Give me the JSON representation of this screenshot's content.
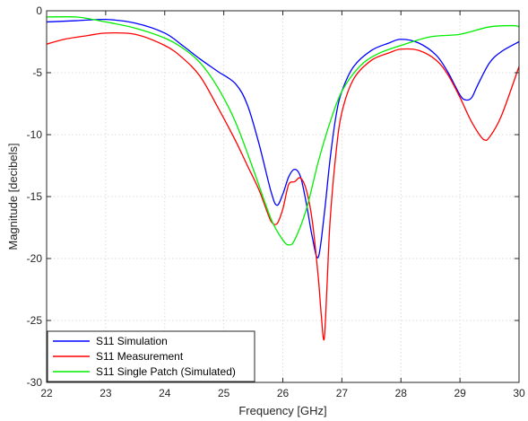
{
  "chart_data": {
    "type": "line",
    "title": "",
    "xlabel": "Frequency [GHz]",
    "ylabel": "Magnitude [decibels]",
    "xlim": [
      22,
      30
    ],
    "ylim": [
      -30,
      0
    ],
    "xticks": [
      22,
      23,
      24,
      25,
      26,
      27,
      28,
      29,
      30
    ],
    "yticks": [
      0,
      -5,
      -10,
      -15,
      -20,
      -25,
      -30
    ],
    "grid": true,
    "legend_position": "bottom-left",
    "series": [
      {
        "name": "S11 Simulation",
        "color": "#0000ff",
        "x": [
          22,
          22.5,
          23,
          23.5,
          24,
          24.3,
          24.6,
          24.9,
          25.2,
          25.4,
          25.6,
          25.8,
          25.9,
          26.0,
          26.1,
          26.2,
          26.3,
          26.4,
          26.5,
          26.6,
          26.7,
          26.8,
          26.9,
          27.0,
          27.2,
          27.5,
          27.8,
          28.0,
          28.3,
          28.6,
          28.8,
          29.0,
          29.1,
          29.2,
          29.3,
          29.5,
          29.7,
          30.0
        ],
        "y": [
          -0.9,
          -0.8,
          -0.7,
          -1.0,
          -1.8,
          -2.8,
          -3.9,
          -4.9,
          -5.9,
          -7.6,
          -10.8,
          -14.6,
          -15.7,
          -14.8,
          -13.4,
          -12.8,
          -13.4,
          -15.6,
          -18.3,
          -19.9,
          -16.5,
          -12.0,
          -8.5,
          -6.5,
          -4.5,
          -3.2,
          -2.6,
          -2.3,
          -2.6,
          -3.6,
          -5.0,
          -6.8,
          -7.2,
          -7.0,
          -6.0,
          -4.2,
          -3.3,
          -2.5
        ]
      },
      {
        "name": "S11 Measurement",
        "color": "#ff0000",
        "x": [
          22,
          22.3,
          22.7,
          23,
          23.5,
          24,
          24.3,
          24.6,
          24.9,
          25.2,
          25.4,
          25.6,
          25.8,
          25.9,
          26.0,
          26.1,
          26.2,
          26.3,
          26.4,
          26.5,
          26.6,
          26.65,
          26.7,
          26.75,
          26.8,
          26.9,
          27.0,
          27.2,
          27.5,
          27.8,
          28.0,
          28.3,
          28.6,
          28.8,
          29.0,
          29.2,
          29.4,
          29.5,
          29.7,
          30.0
        ],
        "y": [
          -2.7,
          -2.3,
          -2.0,
          -1.8,
          -1.9,
          -2.8,
          -3.8,
          -5.3,
          -7.8,
          -10.5,
          -12.5,
          -14.5,
          -17.0,
          -17.2,
          -16.0,
          -14.0,
          -13.8,
          -13.5,
          -14.5,
          -17.0,
          -21.5,
          -24.5,
          -26.5,
          -22.0,
          -17.0,
          -11.5,
          -8.2,
          -5.5,
          -4.0,
          -3.4,
          -3.1,
          -3.2,
          -4.0,
          -5.2,
          -7.0,
          -9.0,
          -10.4,
          -10.2,
          -8.5,
          -4.5
        ]
      },
      {
        "name": "S11 Single Patch (Simulated)",
        "color": "#00ee00",
        "x": [
          22,
          22.5,
          23,
          23.5,
          24,
          24.3,
          24.6,
          24.9,
          25.2,
          25.5,
          25.8,
          26.0,
          26.1,
          26.2,
          26.4,
          26.6,
          26.8,
          27.0,
          27.3,
          27.6,
          28.0,
          28.5,
          29.0,
          29.5,
          29.9,
          30.0
        ],
        "y": [
          -0.5,
          -0.5,
          -0.9,
          -1.4,
          -2.2,
          -3.0,
          -4.2,
          -6.2,
          -9.0,
          -12.8,
          -16.8,
          -18.5,
          -18.9,
          -18.5,
          -16.0,
          -12.2,
          -9.0,
          -6.5,
          -4.5,
          -3.5,
          -2.8,
          -2.1,
          -1.9,
          -1.3,
          -1.2,
          -1.3
        ]
      }
    ]
  }
}
